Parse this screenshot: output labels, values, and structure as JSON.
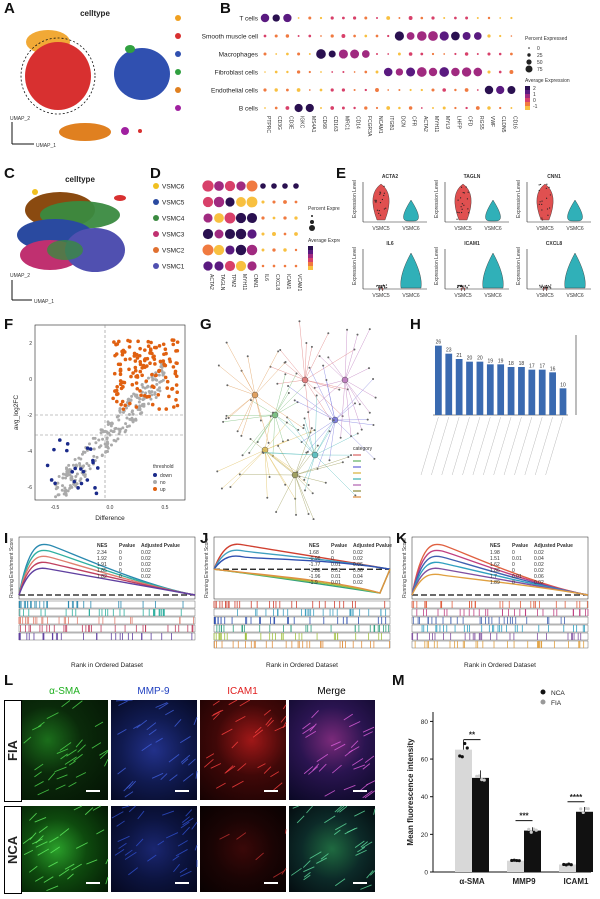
{
  "panel_labels": [
    "A",
    "B",
    "C",
    "D",
    "E",
    "F",
    "G",
    "H",
    "I",
    "J",
    "K",
    "L",
    "M"
  ],
  "panelA": {
    "title": "celltype",
    "xlabel": "UMAP_1",
    "ylabel": "UMAP_2"
  },
  "panelB": {
    "rows": [
      "T cells",
      "Smooth muscle cell",
      "Macrophages",
      "Fibroblast cells",
      "Endothelial cells",
      "B cells"
    ],
    "row_colors": [
      "#f0a020",
      "#d83030",
      "#3050b0",
      "#30a040",
      "#e08020",
      "#a020a0"
    ],
    "genes": [
      "PTPRC",
      "CD3G",
      "CD3E",
      "IGKC",
      "MS4A1",
      "CD68",
      "CD163",
      "MRC1",
      "CD14",
      "FCGR3A",
      "NCAM1",
      "ITGB1",
      "DCN",
      "CFR",
      "ACTA2",
      "MYH11",
      "MYL9",
      "LHFP",
      "CFD",
      "RGS5",
      "VWF",
      "CLDN5",
      "CD16"
    ],
    "legend_pct_title": "Percent Expressed",
    "legend_pct_values": [
      "0",
      "25",
      "50",
      "75"
    ],
    "legend_avg_title": "Average Expression",
    "legend_avg_values": [
      "2",
      "1",
      "0",
      "-1"
    ]
  },
  "panelC": {
    "title": "celltype",
    "xlabel": "UMAP_1",
    "ylabel": "UMAP_2"
  },
  "panelD": {
    "rows": [
      "VSMC6",
      "VSMC5",
      "VSMC4",
      "VSMC3",
      "VSMC2",
      "VSMC1"
    ],
    "row_colors": [
      "#f0c020",
      "#2a4aa0",
      "#3a8a40",
      "#c03070",
      "#e07030",
      "#5050b0"
    ],
    "genes": [
      "ACTA2",
      "TAGLN",
      "TPM2",
      "MYH11",
      "CNN1",
      "IL6",
      "CXCL8",
      "ICAM1",
      "VCAM1"
    ],
    "legend_pct_title": "Percent Expressed",
    "legend_avg_title": "Average Expression"
  },
  "panelE": {
    "plots": [
      {
        "title": "ACTA2",
        "groups": [
          "VSMC5",
          "VSMC6"
        ]
      },
      {
        "title": "TAGLN",
        "groups": [
          "VSMC5",
          "VSMC6"
        ]
      },
      {
        "title": "CNN1",
        "groups": [
          "VSMC5",
          "VSMC6"
        ]
      },
      {
        "title": "IL6",
        "groups": [
          "VSMC5",
          "VSMC6"
        ]
      },
      {
        "title": "ICAM1",
        "groups": [
          "VSMC5",
          "VSMC6"
        ]
      },
      {
        "title": "CXCL8",
        "groups": [
          "VSMC5",
          "VSMC6"
        ]
      }
    ],
    "ylabel": "Expression Level"
  },
  "panelF": {
    "xlabel": "Difference",
    "ylabel": "avg_log2FC",
    "xticks": [
      "-0.5",
      "0.0",
      "0.5"
    ],
    "yticks": [
      "2",
      "0",
      "-2",
      "-4",
      "-6"
    ],
    "legend_title": "threshold",
    "legend": [
      {
        "label": "down",
        "color": "#1a2a8a"
      },
      {
        "label": "no",
        "color": "#aaaaaa"
      },
      {
        "label": "up",
        "color": "#e06010"
      }
    ]
  },
  "panelG": {
    "legend_title": "category"
  },
  "panelH": {
    "values": [
      26,
      23,
      21,
      20,
      20,
      19,
      19,
      18,
      18,
      17,
      17,
      16,
      10
    ],
    "ylim": [
      0,
      30
    ]
  },
  "gsea": {
    "ylabel": "Running Enrichment Score",
    "xlabel": "Rank in Ordered Dataset",
    "table_headers": [
      "NES",
      "Pvalue",
      "Adjusted Pvalue"
    ],
    "I": {
      "rows": [
        [
          "2.34",
          "0",
          "0.02"
        ],
        [
          "1.92",
          "0",
          "0.02"
        ],
        [
          "1.91",
          "0",
          "0.02"
        ],
        [
          "1.85",
          "0",
          "0.02"
        ],
        [
          "1.82",
          "0",
          "0.02"
        ]
      ]
    },
    "J": {
      "rows": [
        [
          "1.68",
          "0",
          "0.02"
        ],
        [
          "-0.96",
          "0",
          "0.02"
        ],
        [
          "-1.77",
          "0.01",
          "0.06"
        ],
        [
          "-1.88",
          "0.01",
          "0.06"
        ],
        [
          "-1.96",
          "0.01",
          "0.04"
        ],
        [
          "-1.9",
          "0.01",
          "0.02"
        ]
      ]
    },
    "K": {
      "rows": [
        [
          "1.98",
          "0",
          "0.02"
        ],
        [
          "1.51",
          "0.01",
          "0.04"
        ],
        [
          "1.62",
          "0",
          "0.02"
        ],
        [
          "1.86",
          "0",
          "0.02"
        ],
        [
          "1.7",
          "0.01",
          "0.06"
        ],
        [
          "1.89",
          "0",
          "0.02"
        ]
      ]
    }
  },
  "panelL": {
    "columns": [
      "α-SMA",
      "MMP-9",
      "ICAM1",
      "Merge"
    ],
    "column_colors": [
      "#20b020",
      "#2040c0",
      "#e02020",
      "#000000"
    ],
    "rows": [
      "FIA",
      "NCA"
    ]
  },
  "panelM": {
    "ylabel": "Mean fluorescence intensity",
    "categories": [
      "α-SMA",
      "MMP9",
      "ICAM1"
    ],
    "legend": [
      "NCA",
      "FIA"
    ],
    "yticks": [
      "0",
      "20",
      "40",
      "60",
      "80"
    ],
    "significance": [
      "**",
      "***",
      "****"
    ],
    "chart_data": {
      "type": "bar",
      "categories": [
        "α-SMA",
        "MMP9",
        "ICAM1"
      ],
      "series": [
        {
          "name": "NCA",
          "values": [
            65,
            6,
            4
          ]
        },
        {
          "name": "FIA",
          "values": [
            50,
            22,
            32
          ]
        }
      ],
      "ylim": [
        0,
        85
      ]
    }
  }
}
